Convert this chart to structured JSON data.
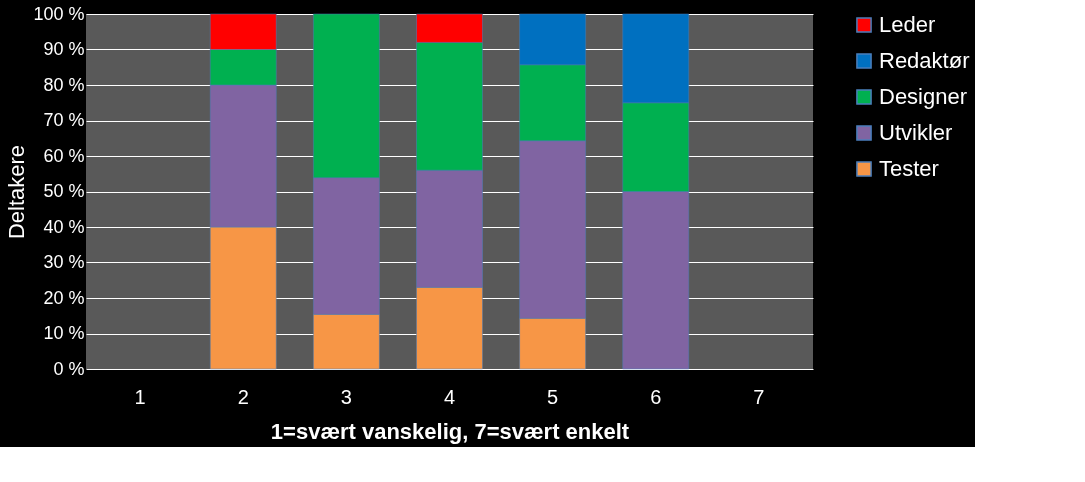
{
  "chart_data": {
    "type": "bar",
    "stacked": true,
    "xlabel": "1=svært vanskelig, 7=svært enkelt",
    "ylabel": "Deltakere",
    "categories": [
      "1",
      "2",
      "3",
      "4",
      "5",
      "6",
      "7"
    ],
    "series": [
      {
        "name": "Tester",
        "color": "#f79646",
        "values": [
          null,
          40,
          15.4,
          23,
          14.3,
          0,
          null
        ]
      },
      {
        "name": "Utvikler",
        "color": "#8064a2",
        "values": [
          null,
          40,
          38.5,
          33,
          50,
          50,
          null
        ]
      },
      {
        "name": "Designer",
        "color": "#00b050",
        "values": [
          null,
          10,
          46.1,
          36,
          21.4,
          25,
          null
        ]
      },
      {
        "name": "Redaktør",
        "color": "#0070c0",
        "values": [
          null,
          0,
          0,
          0,
          14.3,
          25,
          null
        ]
      },
      {
        "name": "Leder",
        "color": "#ff0000",
        "values": [
          null,
          10,
          0,
          8,
          0,
          0,
          null
        ]
      }
    ],
    "ylim": [
      0,
      100
    ],
    "yticks": [
      {
        "value": 0,
        "label": "0 %"
      },
      {
        "value": 10,
        "label": "10 %"
      },
      {
        "value": 20,
        "label": "20 %"
      },
      {
        "value": 30,
        "label": "30 %"
      },
      {
        "value": 40,
        "label": "40 %"
      },
      {
        "value": 50,
        "label": "50 %"
      },
      {
        "value": 60,
        "label": "60 %"
      },
      {
        "value": 70,
        "label": "70 %"
      },
      {
        "value": 80,
        "label": "80 %"
      },
      {
        "value": 90,
        "label": "90 %"
      },
      {
        "value": 100,
        "label": "100 %"
      }
    ],
    "grid": "y",
    "legend": "right"
  }
}
